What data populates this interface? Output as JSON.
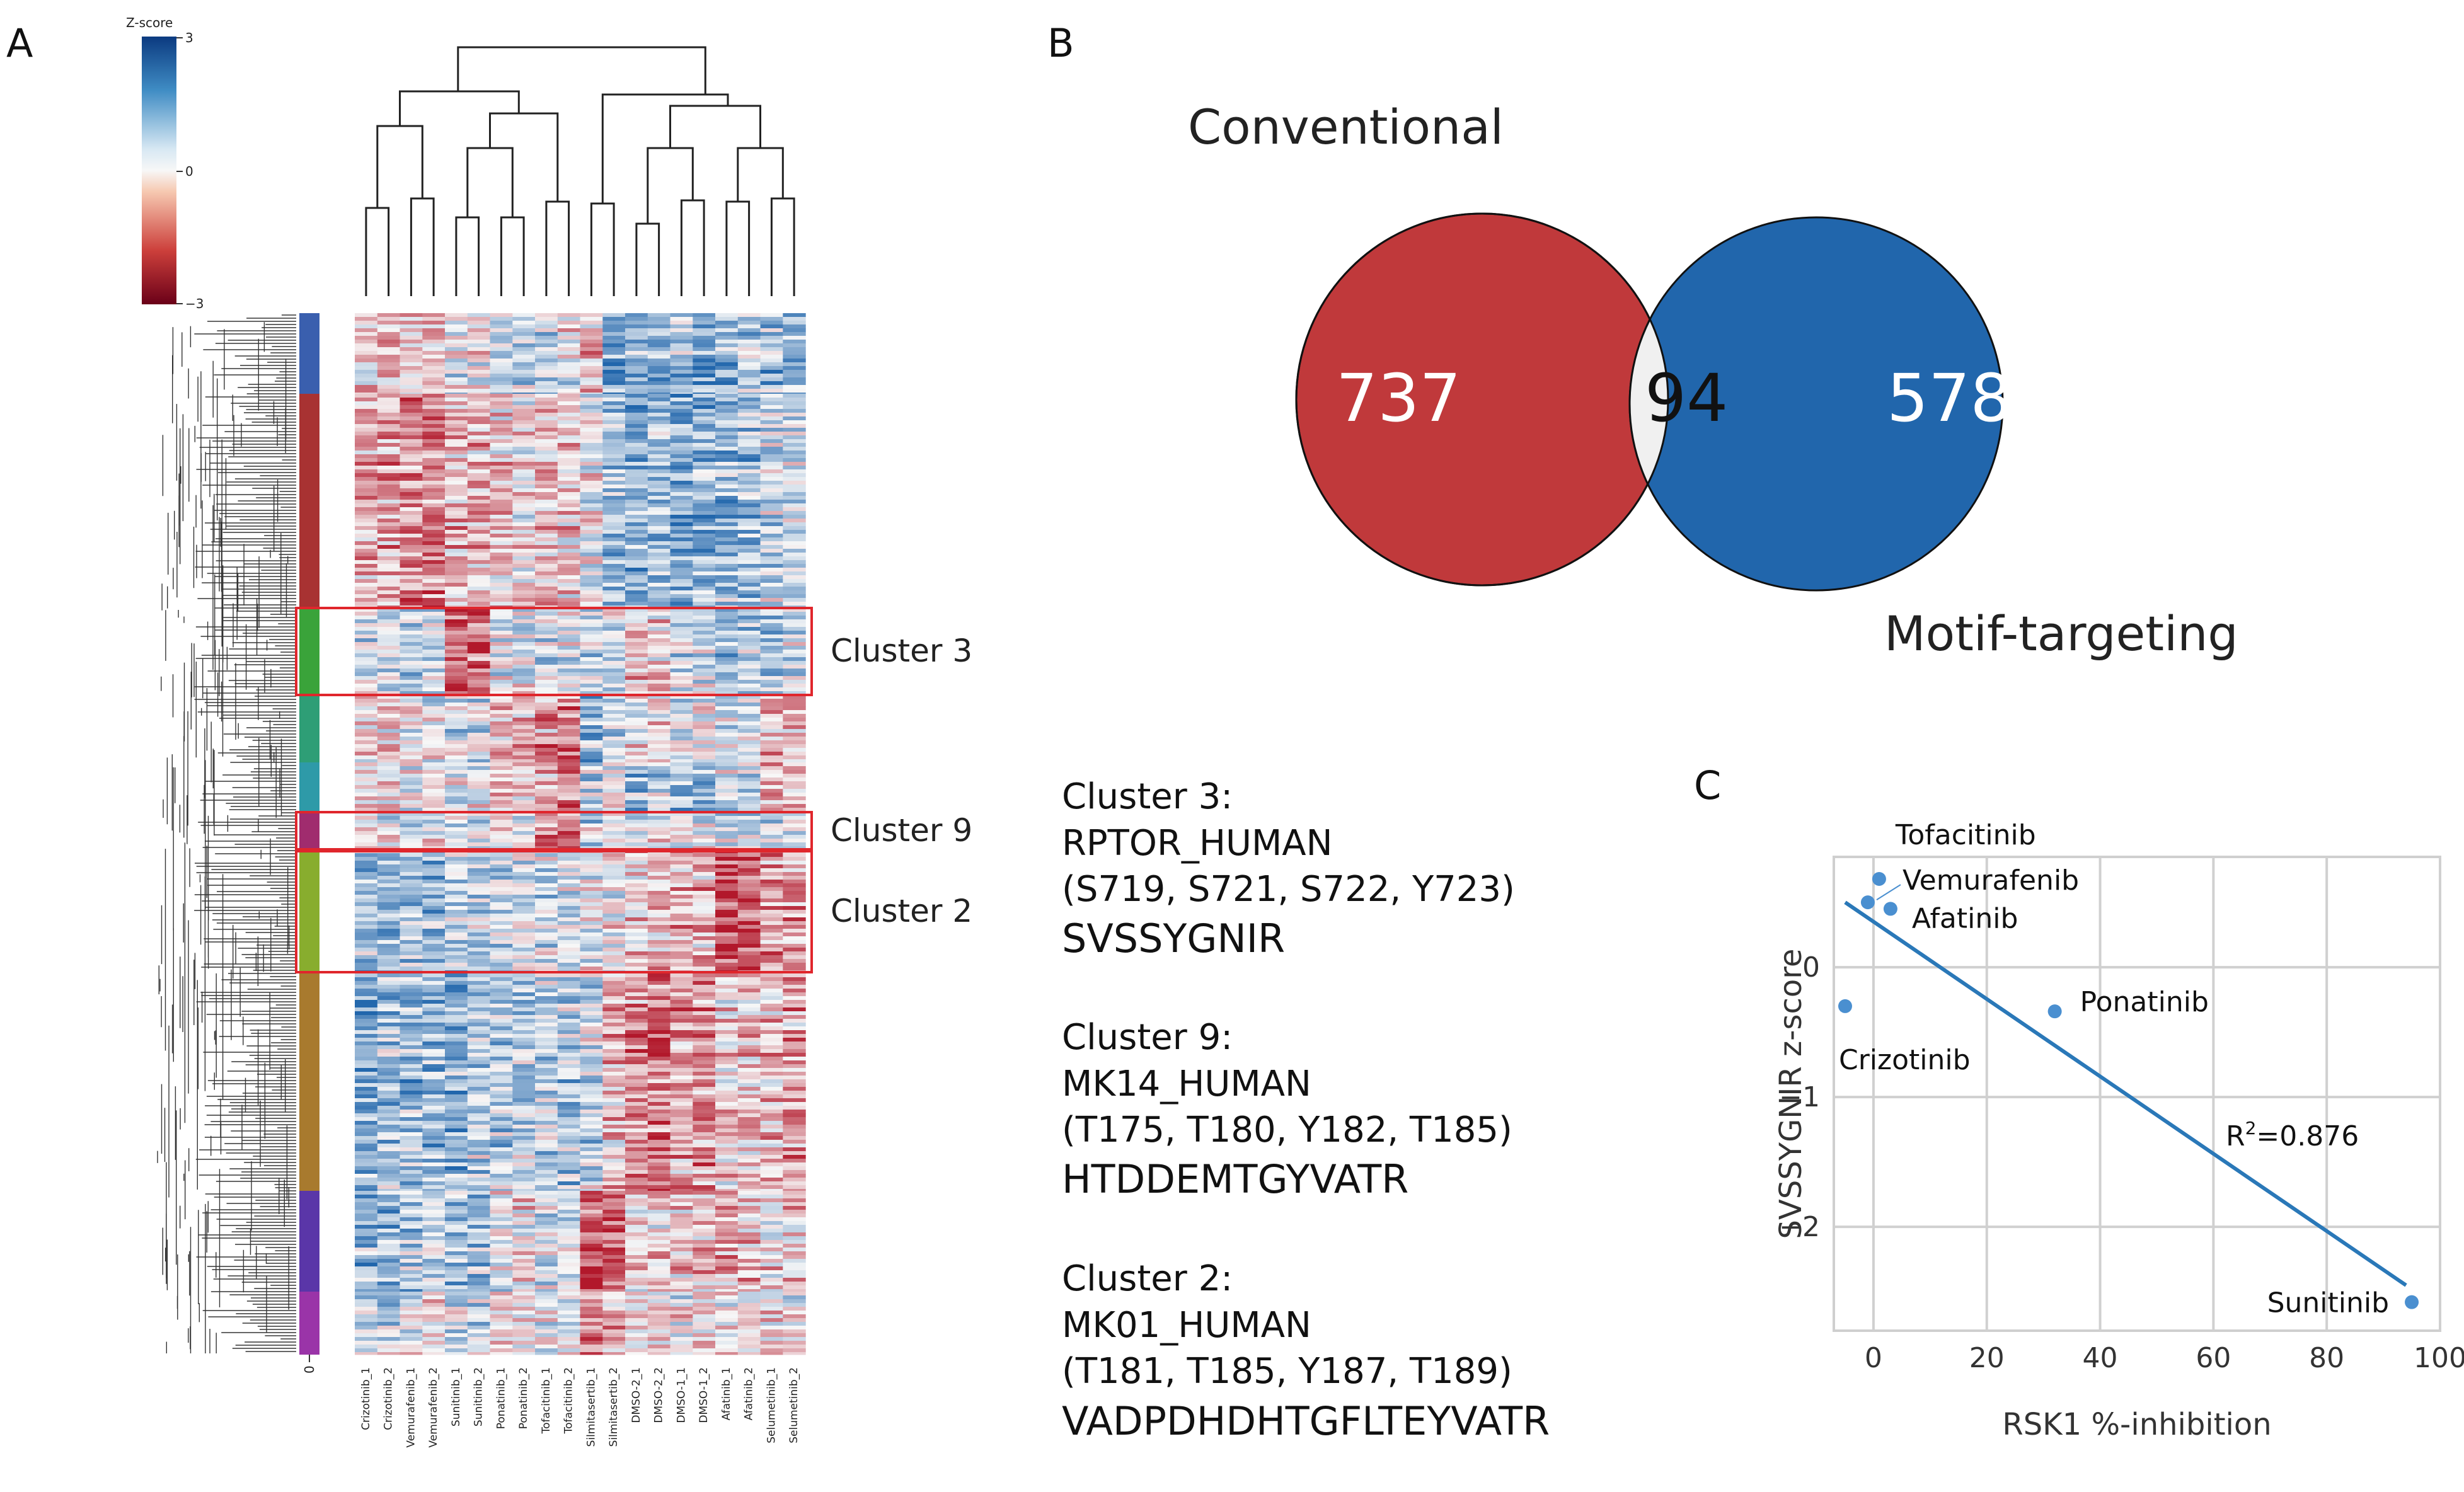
{
  "panels": {
    "a": "A",
    "b": "B",
    "c": "C"
  },
  "heatmap": {
    "colorbar_title": "Z-score",
    "colorbar_ticks": [
      "3",
      "0",
      "−3"
    ],
    "row_cluster_axis_label": "0",
    "columns": [
      "Crizotinib_1",
      "Crizotinib_2",
      "Vemurafenib_1",
      "Vemurafenib_2",
      "Sunitinib_1",
      "Sunitinib_2",
      "Ponatinib_1",
      "Ponatinib_2",
      "Tofacitinib_1",
      "Tofacitinib_2",
      "Silmitasertib_1",
      "Silmitasertib_2",
      "DMSO-2_1",
      "DMSO-2_2",
      "DMSO-1_1",
      "DMSO-1_2",
      "Afatinib_1",
      "Afatinib_2",
      "Selumetinib_1",
      "Selumetinib_2"
    ],
    "row_cluster_colors": [
      "#3a5fae",
      "#a83232",
      "#3aa33a",
      "#2e9e76",
      "#2e9aa8",
      "#a02c6e",
      "#88ad2e",
      "#a87a2e",
      "#5a36a8",
      "#9a34a8"
    ],
    "highlighted_clusters": [
      "Cluster 3",
      "Cluster 9",
      "Cluster 2"
    ]
  },
  "venn": {
    "left_label": "Conventional",
    "right_label": "Motif-targeting",
    "left_only": "737",
    "overlap": "94",
    "right_only": "578",
    "left_color": "#c0393b",
    "right_color": "#2166ac",
    "overlap_color": "#f0f0f0"
  },
  "cluster_info": [
    {
      "title": "Cluster 3:",
      "protein": "RPTOR_HUMAN",
      "sites": "(S719, S721, S722, Y723)",
      "peptide": "SVSSYGNIR"
    },
    {
      "title": "Cluster 9:",
      "protein": "MK14_HUMAN",
      "sites": "(T175, T180, Y182, T185)",
      "peptide": "HTDDEMTGYVATR"
    },
    {
      "title": "Cluster 2:",
      "protein": "MK01_HUMAN",
      "sites": "(T181, T185, Y187, T189)",
      "peptide": "VADPDHDHTGFLTEYVATR"
    }
  ],
  "chart_data": {
    "type": "scatter",
    "xlabel": "RSK1 %-inhibition",
    "ylabel": "SVSSYGNIR z-score",
    "xlim": [
      -7,
      100
    ],
    "ylim": [
      -2.8,
      0.85
    ],
    "xticks": [
      0,
      20,
      40,
      60,
      80,
      100
    ],
    "yticks": [
      0,
      -1,
      -2
    ],
    "grid": true,
    "points": [
      {
        "name": "Tofacitinib",
        "x": 1,
        "y": 0.68
      },
      {
        "name": "Vemurafenib",
        "x": -1,
        "y": 0.5
      },
      {
        "name": "Afatinib",
        "x": 3,
        "y": 0.45
      },
      {
        "name": "Ponatinib",
        "x": 32,
        "y": -0.34
      },
      {
        "name": "Crizotinib",
        "x": -5,
        "y": -0.3
      },
      {
        "name": "Sunitinib",
        "x": 95,
        "y": -2.58
      }
    ],
    "fit": {
      "x": [
        -5,
        94
      ],
      "y": [
        0.5,
        -2.45
      ]
    },
    "annotation": {
      "r_prefix": "R",
      "r_sup": "2",
      "r_value": "=0.876"
    },
    "point_color": "#4a8fd0",
    "line_color": "#2a78b8"
  }
}
